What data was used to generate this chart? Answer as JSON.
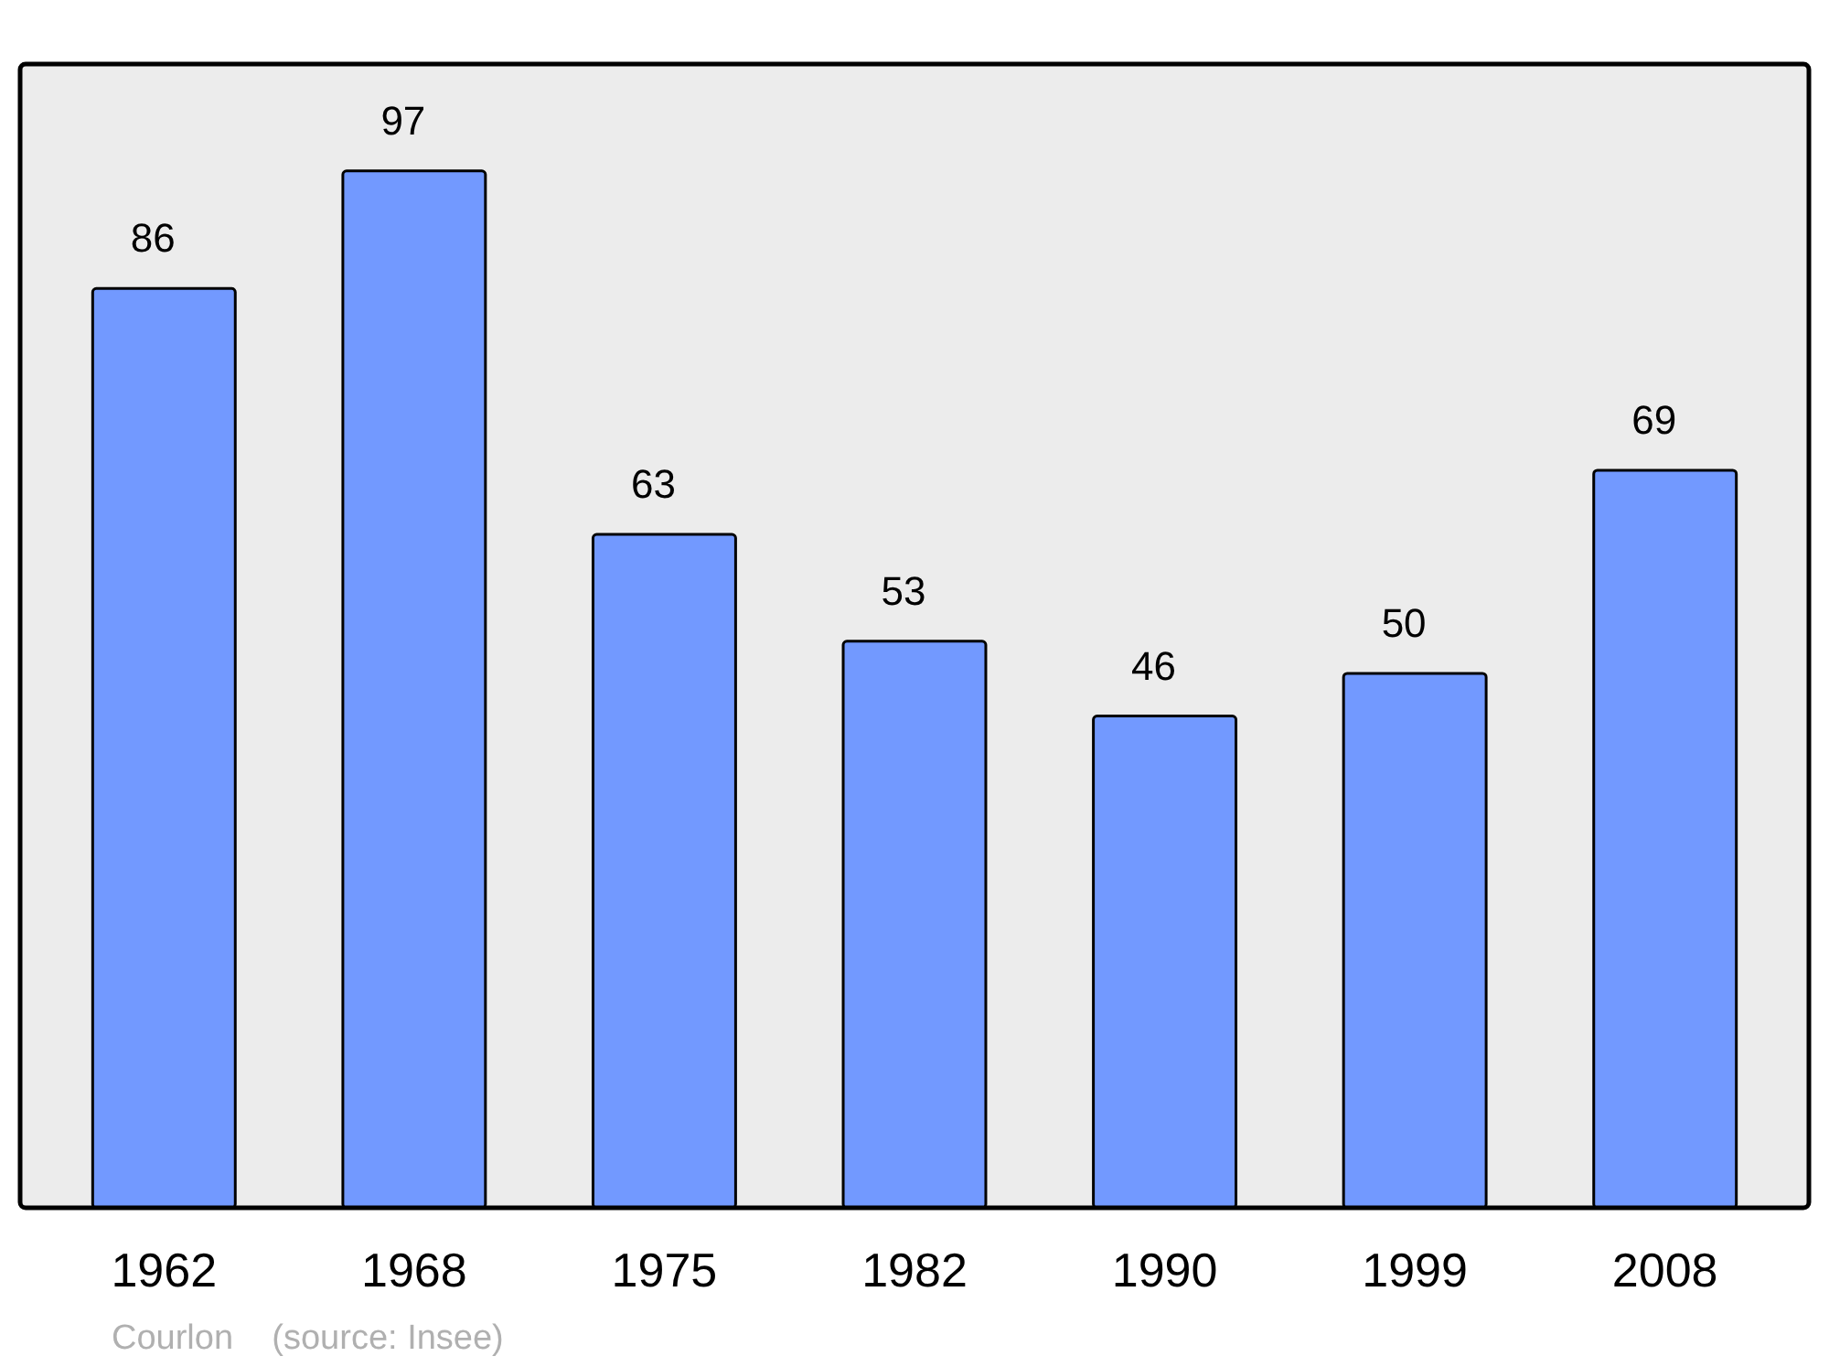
{
  "chart_data": {
    "type": "bar",
    "categories": [
      "1962",
      "1968",
      "1975",
      "1982",
      "1990",
      "1999",
      "2008"
    ],
    "values": [
      86,
      97,
      63,
      53,
      46,
      50,
      69
    ],
    "color": "#7299ff",
    "ylim": [
      0,
      107
    ],
    "data_labels": true,
    "tick_labels": "x",
    "annotations": [
      "Courlon    (source: Insee)"
    ]
  }
}
